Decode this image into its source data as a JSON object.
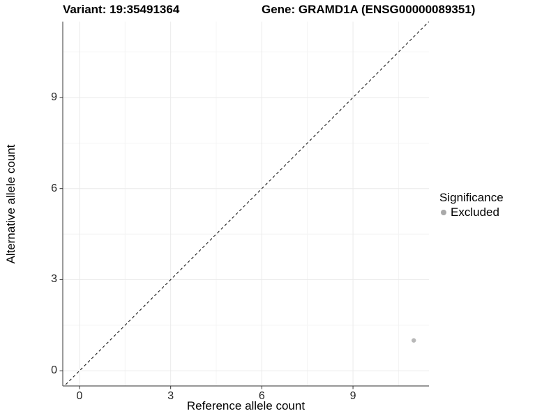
{
  "header": {
    "variant_title": "Variant: 19:35491364",
    "gene_title": "Gene: GRAMD1A (ENSG00000089351)"
  },
  "chart_data": {
    "type": "scatter",
    "title_left": "Variant: 19:35491364",
    "title_right": "Gene: GRAMD1A (ENSG00000089351)",
    "xlabel": "Reference allele count",
    "ylabel": "Alternative allele count",
    "xlim": [
      -0.55,
      11.5
    ],
    "ylim": [
      -0.5,
      11.5
    ],
    "x_ticks": [
      0,
      3,
      6,
      9
    ],
    "y_ticks": [
      0,
      3,
      6,
      9
    ],
    "x_minor_breaks": [
      1.5,
      4.5,
      7.5,
      10.5
    ],
    "y_minor_breaks": [
      1.5,
      4.5,
      7.5,
      10.5
    ],
    "grid": true,
    "reference_line": {
      "kind": "identity",
      "style": "dashed",
      "color": "#1a1a1a"
    },
    "series": [
      {
        "name": "Excluded",
        "color": "#b8b8b8",
        "points": [
          {
            "x": 11,
            "y": 1
          }
        ]
      }
    ],
    "legend": {
      "position": "right",
      "title": "Significance",
      "items": [
        {
          "label": "Excluded",
          "color": "#a9a9a9"
        }
      ]
    },
    "colors": {
      "background": "#ffffff",
      "axis_line": "#595959",
      "tick_mark": "#333333",
      "grid_major": "#eaeaea",
      "grid_minor": "#f4f4f4",
      "point": "#b8b8b8"
    }
  }
}
